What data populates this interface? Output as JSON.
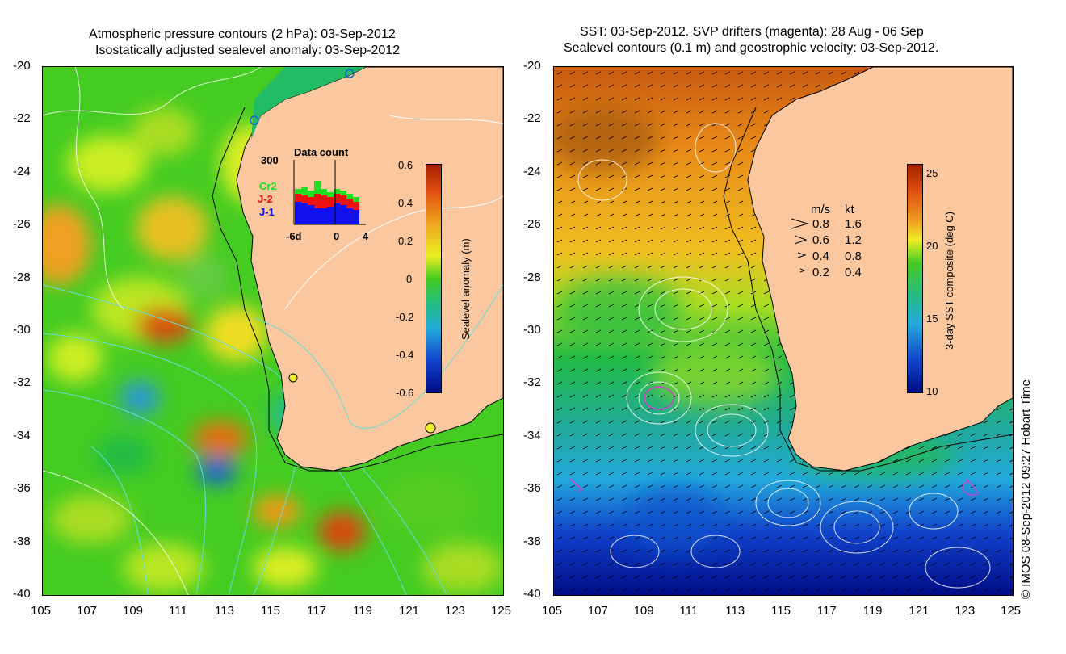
{
  "left_panel": {
    "title_line1": "Atmospheric pressure contours (2 hPa): 03-Sep-2012",
    "title_line2": "Isostatically adjusted sealevel anomaly: 03-Sep-2012",
    "colorbar": {
      "label": "Sealevel anomaly (m)",
      "ticks": [
        "0.6",
        "0.4",
        "0.2",
        "0",
        "-0.2",
        "-0.4",
        "-0.6"
      ]
    },
    "data_count": {
      "title": "Data count",
      "max_label": "300",
      "x_labels": [
        "-6d",
        "0",
        "4"
      ],
      "series": [
        {
          "name": "Cr2",
          "color": "#22dd22"
        },
        {
          "name": "J-2",
          "color": "#ee1111"
        },
        {
          "name": "J-1",
          "color": "#1111ee"
        }
      ]
    }
  },
  "right_panel": {
    "title_line1": "SST: 03-Sep-2012. SVP drifters (magenta): 28 Aug - 06 Sep",
    "title_line2": "Sealevel contours (0.1 m) and geostrophic velocity: 03-Sep-2012.",
    "colorbar": {
      "label": "3-day SST composite (deg C)",
      "ticks": [
        "25",
        "20",
        "15",
        "10"
      ]
    },
    "velocity_legend": {
      "header_ms": "m/s",
      "header_kt": "kt",
      "rows": [
        {
          "ms": "0.8",
          "kt": "1.6"
        },
        {
          "ms": "0.6",
          "kt": "1.2"
        },
        {
          "ms": "0.4",
          "kt": "0.8"
        },
        {
          "ms": "0.2",
          "kt": "0.4"
        }
      ]
    }
  },
  "axes": {
    "lat_ticks": [
      "-20",
      "-22",
      "-24",
      "-26",
      "-28",
      "-30",
      "-32",
      "-34",
      "-36",
      "-38",
      "-40"
    ],
    "lon_ticks": [
      "105",
      "107",
      "109",
      "111",
      "113",
      "115",
      "117",
      "119",
      "121",
      "123",
      "125"
    ]
  },
  "credit": "© IMOS 08-Sep-2012 09:27 Hobart Time",
  "colors": {
    "land": "#fbc79e",
    "ssh_high": "#a62000",
    "ssh_low": "#000c88",
    "contour_pressure": "#66dddd"
  }
}
